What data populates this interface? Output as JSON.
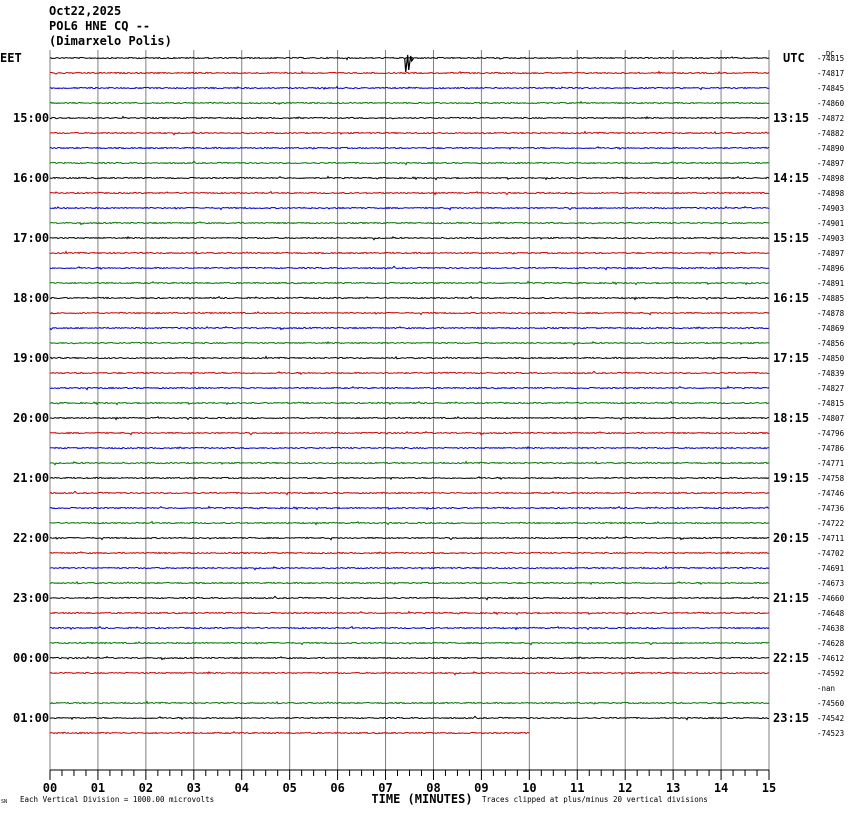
{
  "header": {
    "date": "Oct22,2025",
    "station": "POL6 HNE CQ --",
    "location": "(Dimarxelo Polis)"
  },
  "chart_data": {
    "type": "line",
    "left_timezone": "EET",
    "right_timezone": "UTC",
    "dc_label": "DC",
    "left_hour_labels": [
      "15:00",
      "16:00",
      "17:00",
      "18:00",
      "19:00",
      "20:00",
      "21:00",
      "22:00",
      "23:00",
      "00:00",
      "01:00"
    ],
    "right_hour_labels": [
      "13:15",
      "14:15",
      "15:15",
      "16:15",
      "17:15",
      "18:15",
      "19:15",
      "20:15",
      "21:15",
      "22:15",
      "23:15"
    ],
    "dc_offsets": [
      "-74815",
      "-74817",
      "-74845",
      "-74860",
      "-74872",
      "-74882",
      "-74890",
      "-74897",
      "-74898",
      "-74898",
      "-74903",
      "-74901",
      "-74903",
      "-74897",
      "-74896",
      "-74891",
      "-74885",
      "-74878",
      "-74869",
      "-74856",
      "-74850",
      "-74839",
      "-74827",
      "-74815",
      "-74807",
      "-74796",
      "-74786",
      "-74771",
      "-74758",
      "-74746",
      "-74736",
      "-74722",
      "-74711",
      "-74702",
      "-74691",
      "-74673",
      "-74660",
      "-74648",
      "-74638",
      "-74628",
      "-74612",
      "-74592",
      "-nan",
      "-74560",
      "-74542",
      "-74523"
    ],
    "trace_colors": [
      "#000000",
      "#cc0000",
      "#0000cc",
      "#007700"
    ],
    "trace_count": 46,
    "empty_traces": [
      42
    ],
    "last_trace_end_minute": 10,
    "event": {
      "trace": 0,
      "minute": 7.4
    },
    "x_tick_labels": [
      "00",
      "01",
      "02",
      "03",
      "04",
      "05",
      "06",
      "07",
      "08",
      "09",
      "10",
      "11",
      "12",
      "13",
      "14",
      "15"
    ],
    "xlabel": "TIME (MINUTES)",
    "x_range": [
      0,
      15
    ],
    "grid": true,
    "footer_left": "Each Vertical Division = 1000.00 microvolts",
    "footer_right": "Traces clipped at plus/minus 20 vertical divisions",
    "logo_text": "SN"
  }
}
